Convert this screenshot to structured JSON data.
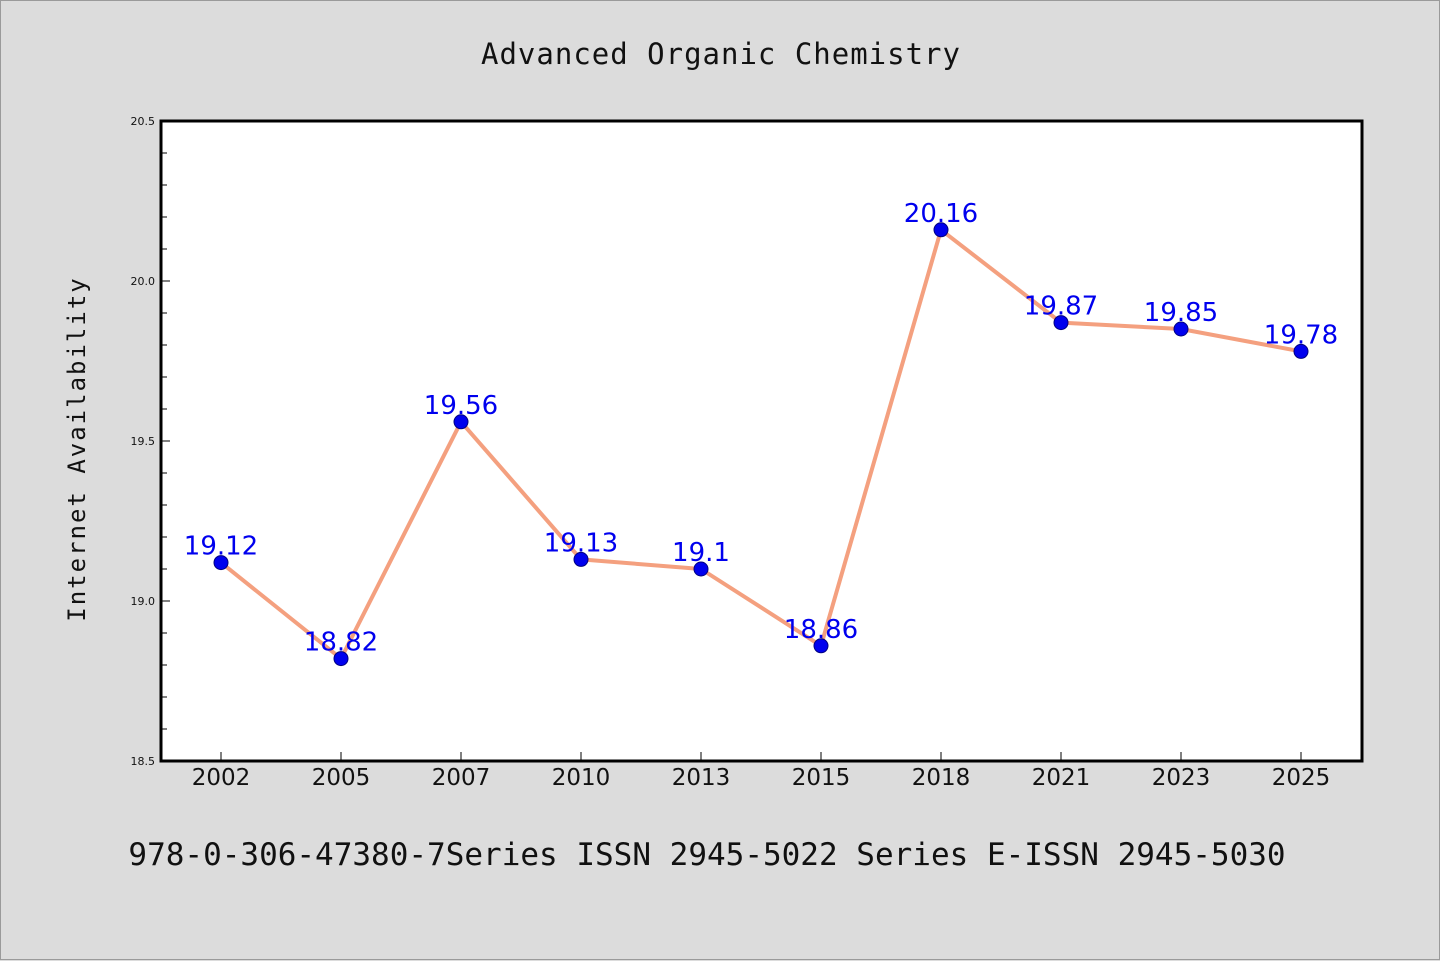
{
  "chart_data": {
    "type": "line",
    "title": "Advanced Organic Chemistry",
    "xlabel": "",
    "ylabel": "Internet Availability",
    "categories": [
      "2002",
      "2005",
      "2007",
      "2010",
      "2013",
      "2015",
      "2018",
      "2021",
      "2023",
      "2025"
    ],
    "series": [
      {
        "values": [
          19.12,
          18.82,
          19.56,
          19.13,
          19.1,
          18.86,
          20.16,
          19.87,
          19.85,
          19.78
        ],
        "data_labels": [
          "19.12",
          "18.82",
          "19.56",
          "19.13",
          "19.1",
          "18.86",
          "20.16",
          "19.87",
          "19.85",
          "19.78"
        ]
      }
    ],
    "ylim": [
      18.5,
      20.5
    ],
    "yticks": [
      "18.5",
      "19.0",
      "19.5",
      "20.0",
      "20.5"
    ],
    "grid": false,
    "colors": {
      "line": "#f4a07f",
      "marker": "#0000ee",
      "marker_edge": "#000080",
      "data_label": "#0000ee",
      "plot_background": "#ffffff",
      "figure_background": "#dcdcdc"
    }
  },
  "footer": {
    "text": "978-0-306-47380-7Series ISSN 2945-5022 Series E-ISSN 2945-5030"
  }
}
